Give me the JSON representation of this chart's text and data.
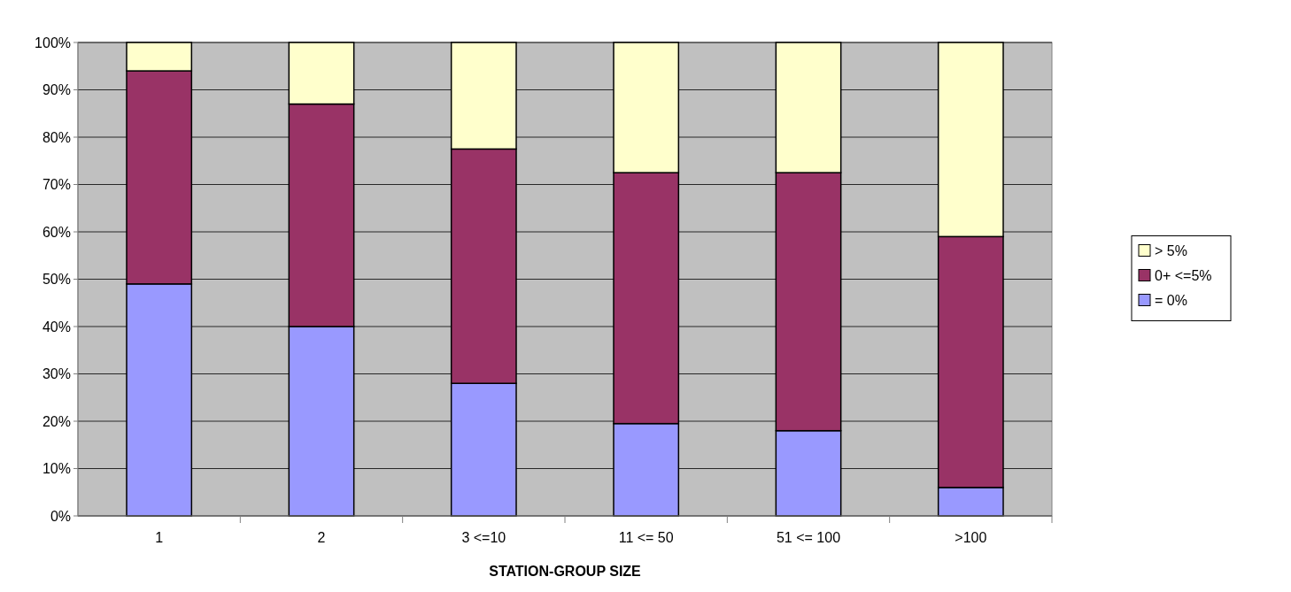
{
  "chart_data": {
    "type": "bar",
    "stacked": true,
    "xlabel": "STATION-GROUP SIZE",
    "categories": [
      "1",
      "2",
      "3 <=10",
      "11 <= 50",
      "51 <= 100",
      ">100"
    ],
    "series": [
      {
        "name": "= 0%",
        "color": "#9999ff",
        "values": [
          49,
          40,
          28,
          19.5,
          18,
          6
        ]
      },
      {
        "name": "0+ <=5%",
        "color": "#993366",
        "values": [
          45,
          47,
          49.5,
          53,
          54.5,
          53
        ]
      },
      {
        "name": "> 5%",
        "color": "#ffffcc",
        "values": [
          6,
          13,
          22.5,
          27.5,
          27.5,
          41
        ]
      }
    ],
    "ylim": [
      0,
      100
    ],
    "yticks": [
      {
        "value": 0,
        "label": "0%"
      },
      {
        "value": 10,
        "label": "10%"
      },
      {
        "value": 20,
        "label": "20%"
      },
      {
        "value": 30,
        "label": "30%"
      },
      {
        "value": 40,
        "label": "40%"
      },
      {
        "value": 50,
        "label": "50%"
      },
      {
        "value": 60,
        "label": "60%"
      },
      {
        "value": 70,
        "label": "70%"
      },
      {
        "value": 80,
        "label": "80%"
      },
      {
        "value": 90,
        "label": "90%"
      },
      {
        "value": 100,
        "label": "100%"
      }
    ],
    "grid": "y",
    "legend": "right"
  }
}
